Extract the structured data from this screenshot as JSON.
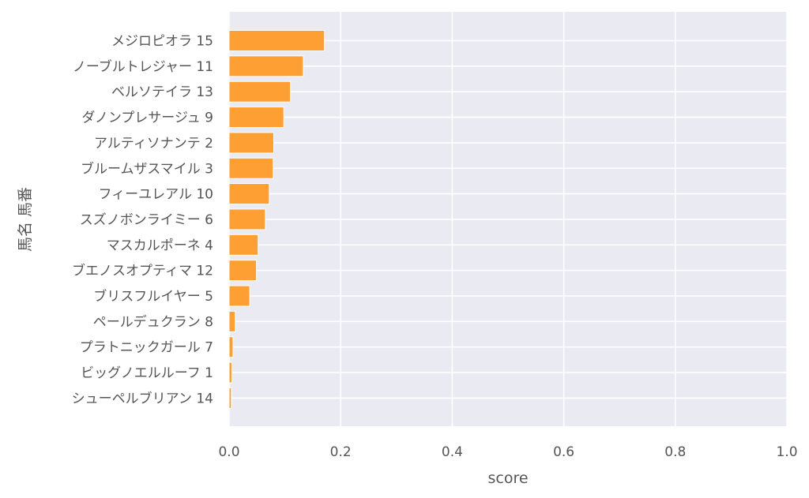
{
  "chart_data": {
    "type": "bar",
    "orientation": "horizontal",
    "xlabel": "score",
    "ylabel": "馬名 馬番",
    "xlim": [
      0.0,
      1.0
    ],
    "xticks": [
      "0.0",
      "0.2",
      "0.4",
      "0.6",
      "0.8",
      "1.0"
    ],
    "xtick_values": [
      0.0,
      0.2,
      0.4,
      0.6,
      0.8,
      1.0
    ],
    "grid": true,
    "categories": [
      "メジロピオラ 15",
      "ノーブルトレジャー 11",
      "ベルソテイラ 13",
      "ダノンプレサージュ 9",
      "アルティソナンテ 2",
      "ブルームザスマイル 3",
      "フィーユレアル 10",
      "スズノボンライミー 6",
      "マスカルポーネ 4",
      "ブエノスオプティマ 12",
      "ブリスフルイヤー 5",
      "ペールデュクラン 8",
      "プラトニックガール 7",
      "ビッグノエルルーフ 1",
      "シューペルブリアン 14"
    ],
    "values": [
      0.171,
      0.133,
      0.11,
      0.098,
      0.08,
      0.079,
      0.072,
      0.065,
      0.052,
      0.049,
      0.037,
      0.011,
      0.007,
      0.005,
      0.004
    ],
    "bar_color": "#fd9f33",
    "background_color": "#eaeaf2",
    "grid_color": "#ffffff"
  }
}
